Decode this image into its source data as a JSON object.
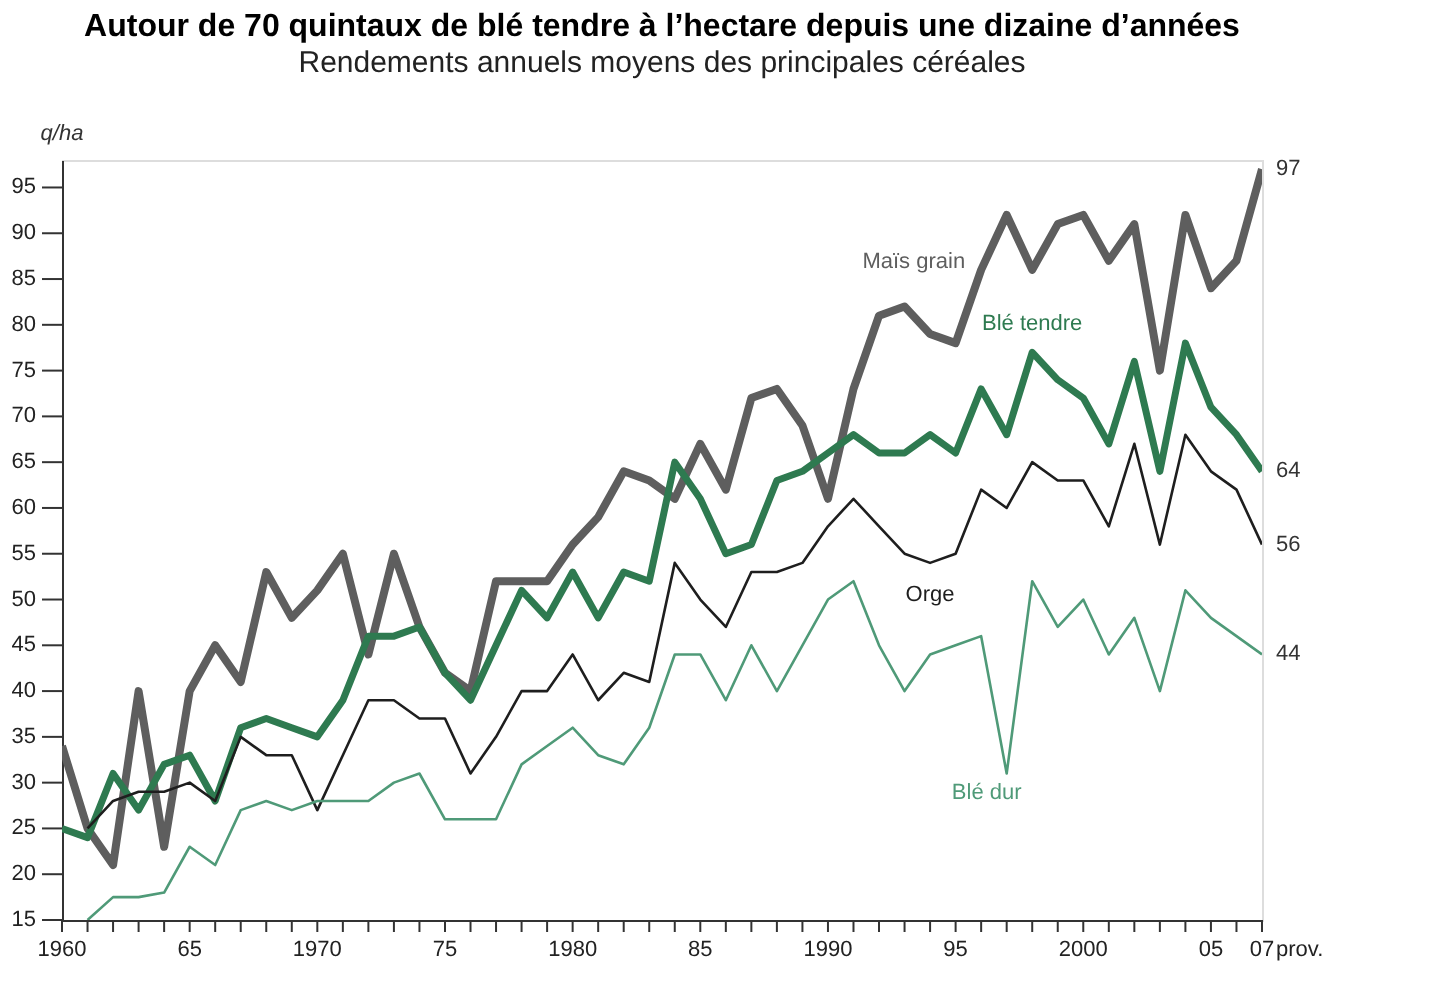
{
  "chart_data": {
    "type": "line",
    "title": "Autour de 70 quintaux de blé tendre à l’hectare depuis une dizaine d’années",
    "subtitle": "Rendements annuels moyens des principales céréales",
    "ylabel": "q/ha",
    "x": [
      1960,
      1961,
      1962,
      1963,
      1964,
      1965,
      1966,
      1967,
      1968,
      1969,
      1970,
      1971,
      1972,
      1973,
      1974,
      1975,
      1976,
      1977,
      1978,
      1979,
      1980,
      1981,
      1982,
      1983,
      1984,
      1985,
      1986,
      1987,
      1988,
      1989,
      1990,
      1991,
      1992,
      1993,
      1994,
      1995,
      1996,
      1997,
      1998,
      1999,
      2000,
      2001,
      2002,
      2003,
      2004,
      2005,
      2006,
      2007
    ],
    "series": [
      {
        "name": "Maïs grain",
        "color": "#5e5e5e",
        "values": [
          34,
          25,
          21,
          40,
          23,
          40,
          45,
          41,
          53,
          48,
          51,
          55,
          44,
          55,
          47,
          42,
          40,
          52,
          52,
          52,
          56,
          59,
          64,
          63,
          61,
          67,
          62,
          72,
          73,
          69,
          61,
          73,
          81,
          82,
          79,
          78,
          86,
          92,
          86,
          91,
          92,
          87,
          91,
          75,
          92,
          84,
          87,
          97
        ],
        "value_labels": [
          null,
          null,
          null,
          null,
          null,
          null,
          null,
          null,
          null,
          null,
          null,
          null,
          null,
          null,
          null,
          null,
          null,
          null,
          null,
          null,
          null,
          null,
          null,
          null,
          null,
          null,
          null,
          null,
          null,
          null,
          null,
          null,
          null,
          null,
          null,
          null,
          null,
          null,
          null,
          null,
          null,
          null,
          null,
          null,
          null,
          null,
          null,
          "97"
        ]
      },
      {
        "name": "Blé tendre",
        "color": "#2e7a50",
        "values": [
          25,
          24,
          31,
          27,
          32,
          33,
          28,
          36,
          37,
          36,
          35,
          39,
          46,
          46,
          47,
          42,
          39,
          45,
          51,
          48,
          53,
          48,
          53,
          52,
          65,
          61,
          55,
          56,
          63,
          64,
          66,
          68,
          66,
          66,
          68,
          66,
          73,
          68,
          77,
          74,
          72,
          67,
          76,
          64,
          78,
          71,
          68,
          64
        ],
        "value_labels": [
          null,
          null,
          null,
          null,
          null,
          null,
          null,
          null,
          null,
          null,
          null,
          null,
          null,
          null,
          null,
          null,
          null,
          null,
          null,
          null,
          null,
          null,
          null,
          null,
          null,
          null,
          null,
          null,
          null,
          null,
          null,
          null,
          null,
          null,
          null,
          null,
          null,
          null,
          null,
          null,
          null,
          null,
          null,
          null,
          null,
          null,
          null,
          "64"
        ]
      },
      {
        "name": "Orge",
        "color": "#1e1e1e",
        "values": [
          null,
          25,
          28,
          29,
          29,
          30,
          28,
          35,
          33,
          33,
          27,
          33,
          39,
          39,
          37,
          37,
          31,
          35,
          40,
          40,
          44,
          39,
          42,
          41,
          54,
          50,
          47,
          53,
          53,
          54,
          58,
          61,
          58,
          55,
          54,
          55,
          62,
          60,
          65,
          63,
          63,
          58,
          67,
          56,
          68,
          64,
          62,
          56
        ],
        "value_labels": [
          null,
          null,
          null,
          null,
          null,
          null,
          null,
          null,
          null,
          null,
          null,
          null,
          null,
          null,
          null,
          null,
          null,
          null,
          null,
          null,
          null,
          null,
          null,
          null,
          null,
          null,
          null,
          null,
          null,
          null,
          null,
          null,
          null,
          null,
          null,
          null,
          null,
          null,
          null,
          null,
          null,
          null,
          null,
          null,
          null,
          null,
          null,
          "56"
        ]
      },
      {
        "name": "Blé dur",
        "color": "#4f9a78",
        "values": [
          null,
          15,
          17.5,
          17.5,
          18,
          23,
          21,
          27,
          28,
          27,
          28,
          28,
          28,
          30,
          31,
          26,
          26,
          26,
          32,
          34,
          36,
          33,
          32,
          36,
          44,
          44,
          39,
          45,
          40,
          45,
          50,
          52,
          45,
          40,
          44,
          45,
          46,
          31,
          52,
          47,
          50,
          44,
          48,
          40,
          51,
          48,
          46,
          44
        ],
        "value_labels": [
          null,
          null,
          null,
          null,
          null,
          null,
          null,
          null,
          null,
          null,
          null,
          null,
          null,
          null,
          null,
          null,
          null,
          null,
          null,
          null,
          null,
          null,
          null,
          null,
          null,
          null,
          null,
          null,
          null,
          null,
          null,
          null,
          null,
          null,
          null,
          null,
          null,
          null,
          null,
          null,
          null,
          null,
          null,
          null,
          null,
          null,
          null,
          "44"
        ]
      }
    ],
    "xlim": [
      1960,
      2007
    ],
    "xticks": [
      1960,
      {
        "value": 1961,
        "label": null
      },
      {
        "value": 1962,
        "label": null
      },
      {
        "value": 1963,
        "label": null
      },
      {
        "value": 1964,
        "label": null
      },
      {
        "value": 1965,
        "label": "65"
      },
      {
        "value": 1966,
        "label": null
      },
      {
        "value": 1967,
        "label": null
      },
      {
        "value": 1968,
        "label": null
      },
      {
        "value": 1969,
        "label": null
      },
      1970,
      {
        "value": 1971,
        "label": null
      },
      {
        "value": 1972,
        "label": null
      },
      {
        "value": 1973,
        "label": null
      },
      {
        "value": 1974,
        "label": null
      },
      {
        "value": 1975,
        "label": "75"
      },
      {
        "value": 1976,
        "label": null
      },
      {
        "value": 1977,
        "label": null
      },
      {
        "value": 1978,
        "label": null
      },
      {
        "value": 1979,
        "label": null
      },
      1980,
      {
        "value": 1981,
        "label": null
      },
      {
        "value": 1982,
        "label": null
      },
      {
        "value": 1983,
        "label": null
      },
      {
        "value": 1984,
        "label": null
      },
      {
        "value": 1985,
        "label": "85"
      },
      {
        "value": 1986,
        "label": null
      },
      {
        "value": 1987,
        "label": null
      },
      {
        "value": 1988,
        "label": null
      },
      {
        "value": 1989,
        "label": null
      },
      1990,
      {
        "value": 1991,
        "label": null
      },
      {
        "value": 1992,
        "label": null
      },
      {
        "value": 1993,
        "label": null
      },
      {
        "value": 1994,
        "label": null
      },
      {
        "value": 1995,
        "label": "95"
      },
      {
        "value": 1996,
        "label": null
      },
      {
        "value": 1997,
        "label": null
      },
      {
        "value": 1998,
        "label": null
      },
      {
        "value": 1999,
        "label": null
      },
      2000,
      {
        "value": 2001,
        "label": null
      },
      {
        "value": 2002,
        "label": null
      },
      {
        "value": 2003,
        "label": null
      },
      {
        "value": 2004,
        "label": null
      },
      {
        "value": 2005,
        "label": "05"
      },
      {
        "value": 2006,
        "label": null
      },
      {
        "value": 2007,
        "label": "07"
      }
    ],
    "annotations": [
      "prov."
    ],
    "ylim": [
      15,
      98
    ],
    "yticks": [
      15,
      20,
      25,
      30,
      35,
      40,
      45,
      50,
      55,
      60,
      65,
      70,
      75,
      80,
      85,
      90,
      95
    ],
    "grid": false,
    "legend": false,
    "marker": "none",
    "line_style": "solid"
  }
}
